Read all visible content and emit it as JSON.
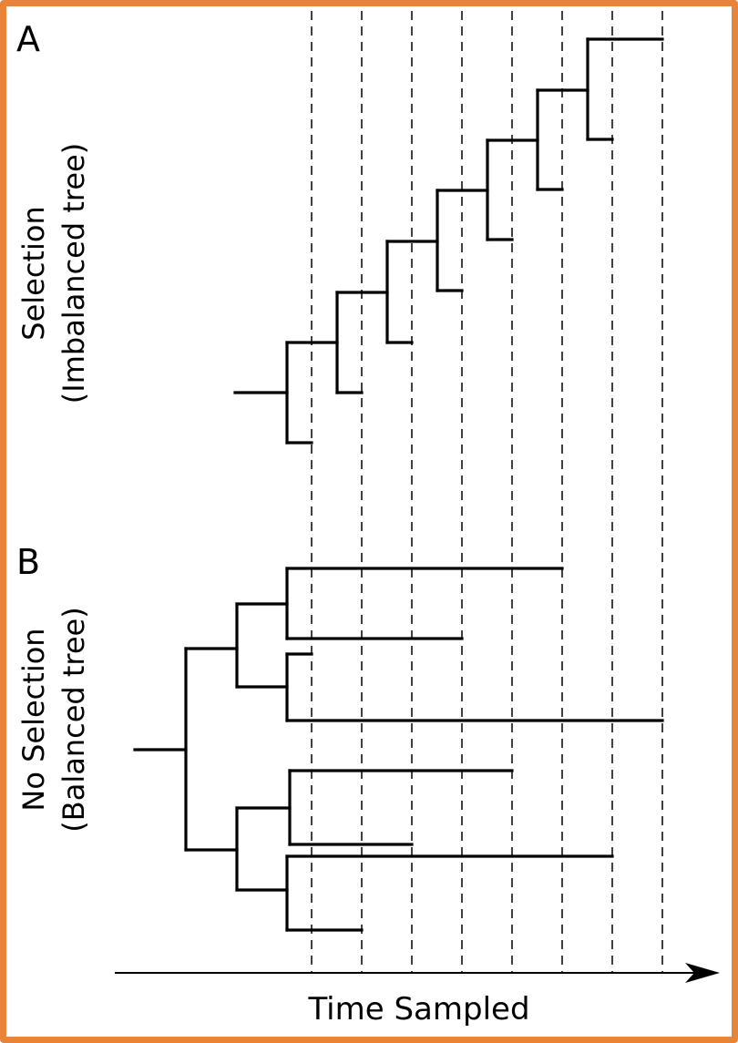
{
  "colors": {
    "frame": "#e8843a",
    "ink": "#000000"
  },
  "panels": {
    "a": {
      "letter": "A",
      "title": "Selection",
      "subtitle": "(Imbalanced tree)"
    },
    "b": {
      "letter": "B",
      "title": "No Selection",
      "subtitle": "(Balanced tree)"
    }
  },
  "axis": {
    "title": "Time Sampled",
    "sample_times": 8
  }
}
